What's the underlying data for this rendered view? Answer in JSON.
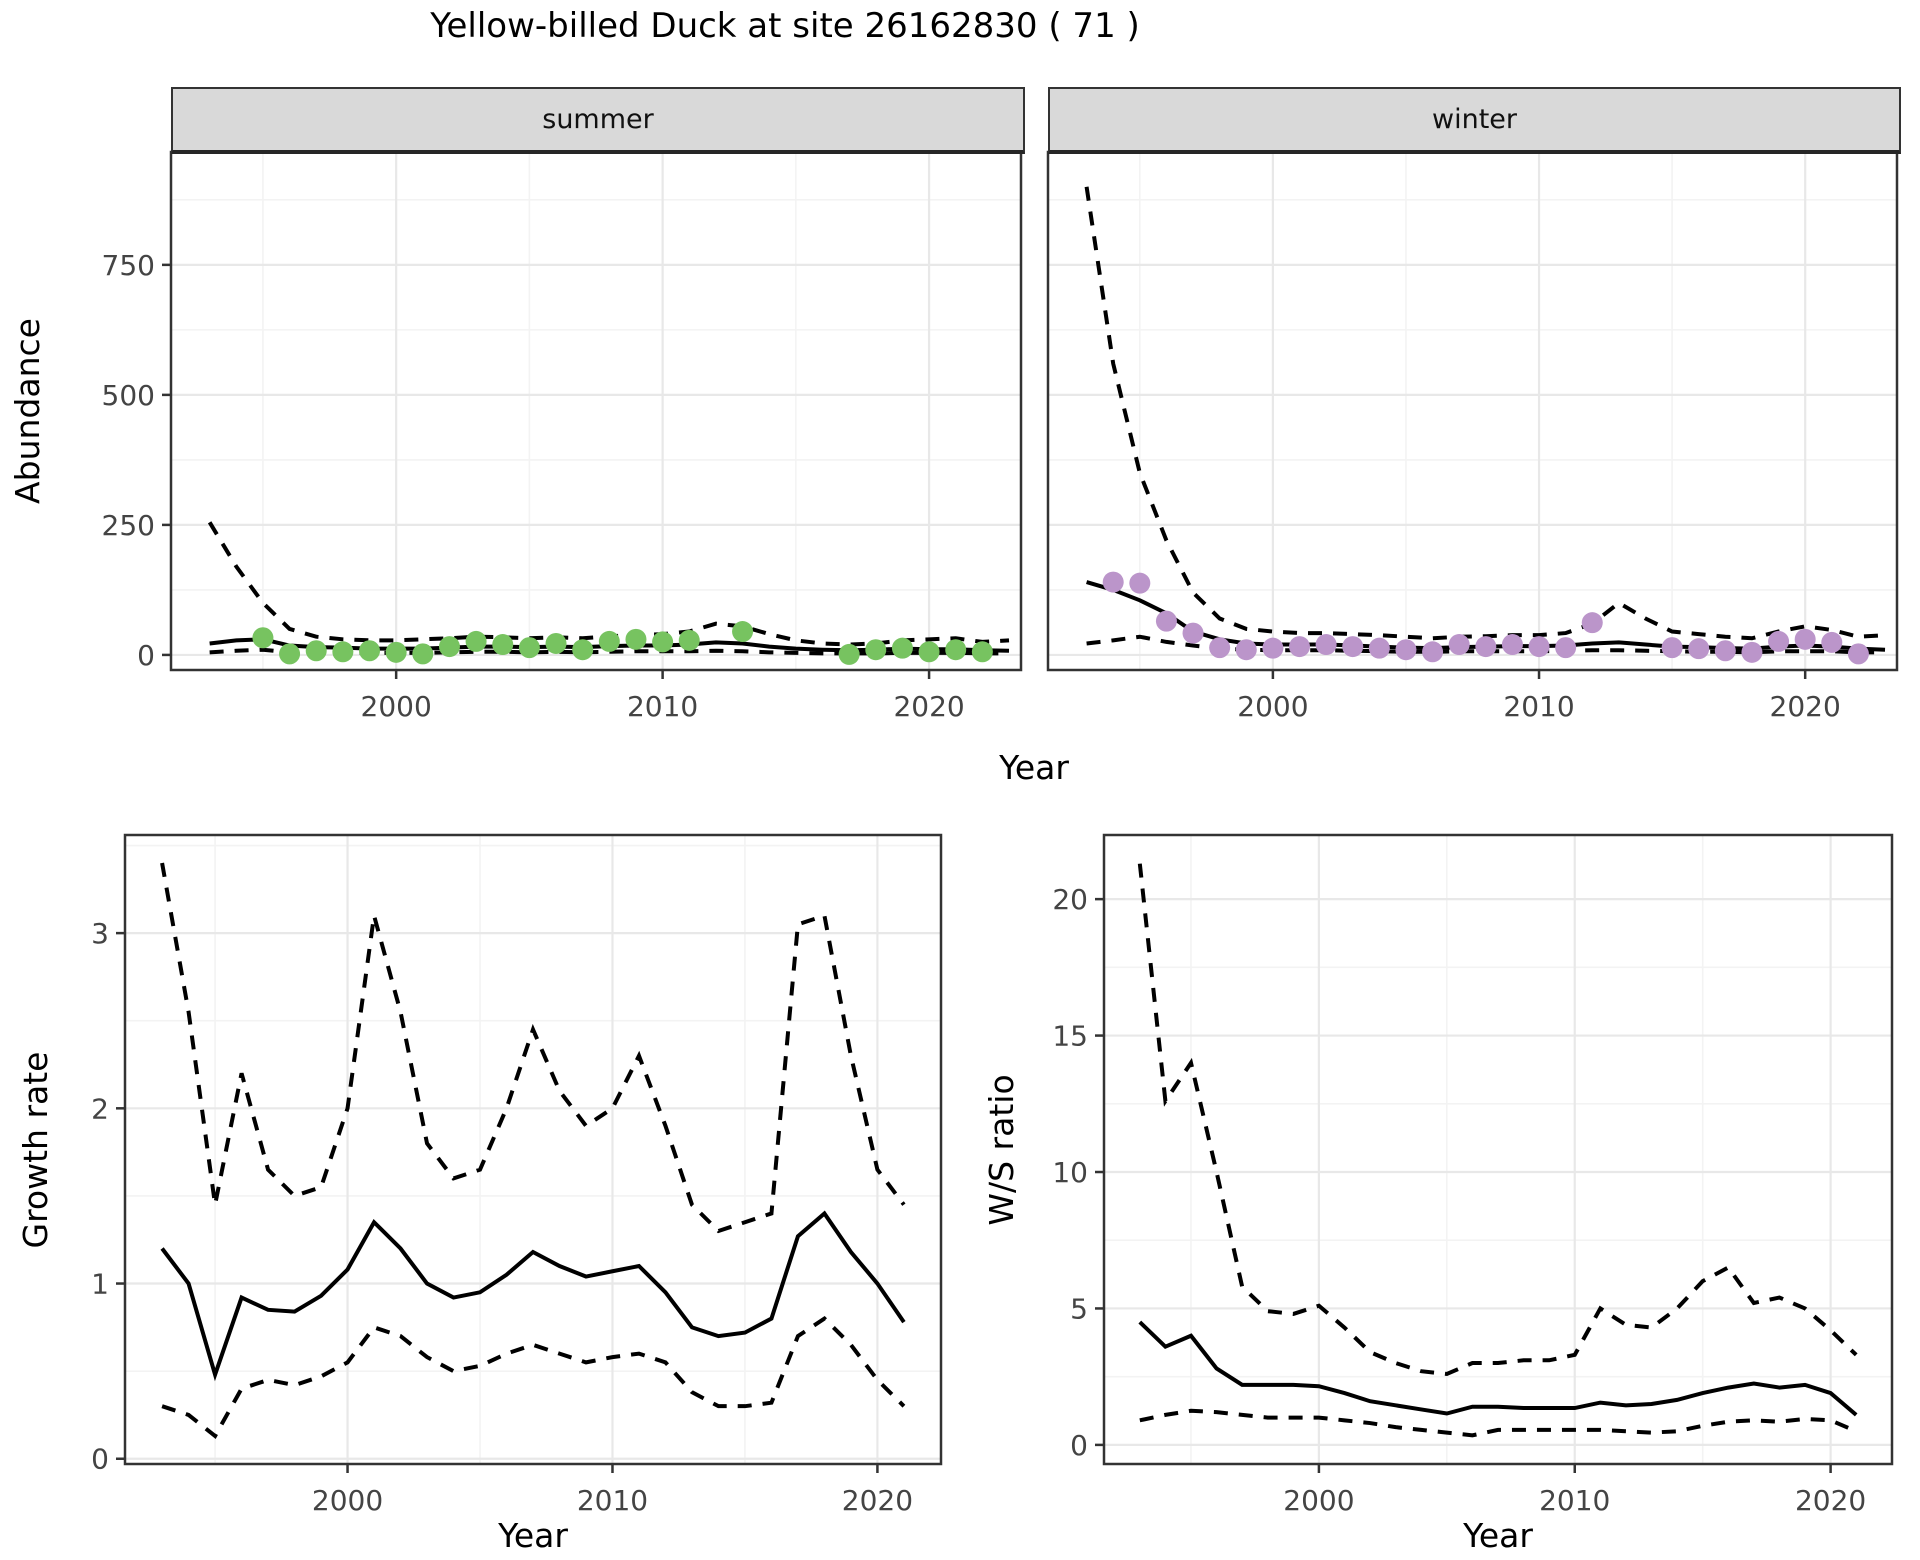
{
  "title": "Yellow-billed Duck at site 26162830 ( 71 )",
  "axes": {
    "abundance_y": "Abundance",
    "top_x": "Year",
    "growth_y": "Growth rate",
    "bottom_left_x": "Year",
    "ws_y": "W/S ratio",
    "bottom_right_x": "Year"
  },
  "facets": [
    {
      "label": "summer"
    },
    {
      "label": "winter"
    }
  ],
  "colors": {
    "summer_points": "#77C360",
    "winter_points": "#BB95CA",
    "line": "#000000",
    "grid_major": "#E8E8E8",
    "grid_minor": "#F3F3F3",
    "strip_bg": "#D9D9D9",
    "panel_border": "#333333",
    "tick_text": "#444444"
  },
  "chart_data": [
    {
      "id": "summer",
      "type": "line",
      "title": "summer",
      "xlabel": "Year",
      "ylabel": "Abundance",
      "xlim": [
        1991.55,
        2023.45
      ],
      "ylim": [
        -29,
        967
      ],
      "xticks": [
        2000,
        2010,
        2020
      ],
      "xticks_minor": [
        1995,
        2005,
        2015
      ],
      "yticks": [
        0,
        250,
        500,
        750
      ],
      "yticks_minor": [
        125,
        375,
        625,
        875
      ],
      "show_y_tick_labels": true,
      "grid": true,
      "x": [
        1993,
        1994,
        1995,
        1996,
        1997,
        1998,
        1999,
        2000,
        2001,
        2002,
        2003,
        2004,
        2005,
        2006,
        2007,
        2008,
        2009,
        2010,
        2011,
        2012,
        2013,
        2014,
        2015,
        2016,
        2017,
        2018,
        2019,
        2020,
        2021,
        2022,
        2023
      ],
      "series": [
        {
          "name": "upper_95ci",
          "style": "dashed",
          "values": [
            255,
            170,
            100,
            50,
            35,
            30,
            28,
            28,
            30,
            32,
            35,
            34,
            32,
            34,
            32,
            36,
            38,
            40,
            45,
            60,
            55,
            40,
            28,
            22,
            20,
            22,
            28,
            30,
            32,
            25,
            28
          ]
        },
        {
          "name": "median_fit",
          "style": "solid",
          "values": [
            22,
            28,
            30,
            18,
            15,
            14,
            12,
            12,
            12,
            14,
            16,
            16,
            15,
            16,
            15,
            17,
            18,
            18,
            20,
            24,
            22,
            16,
            12,
            10,
            9,
            10,
            12,
            11,
            11,
            9,
            8
          ]
        },
        {
          "name": "lower_95ci",
          "style": "dashed",
          "values": [
            5,
            8,
            10,
            5,
            6,
            5,
            4,
            4,
            4,
            5,
            6,
            6,
            5,
            6,
            5,
            6,
            7,
            7,
            7,
            8,
            7,
            5,
            4,
            3,
            3,
            3,
            4,
            4,
            4,
            3,
            3
          ]
        }
      ],
      "points": {
        "name": "observed_summer_counts",
        "color": "#77C360",
        "x": [
          1995,
          1996,
          1997,
          1998,
          1999,
          2000,
          2001,
          2002,
          2003,
          2004,
          2005,
          2006,
          2007,
          2008,
          2009,
          2010,
          2011,
          2013,
          2017,
          2018,
          2019,
          2020,
          2021,
          2022
        ],
        "y": [
          33,
          2,
          8,
          6,
          8,
          5,
          2,
          16,
          26,
          20,
          14,
          22,
          10,
          26,
          30,
          25,
          28,
          45,
          1,
          10,
          13,
          6,
          10,
          6
        ]
      }
    },
    {
      "id": "winter",
      "type": "line",
      "title": "winter",
      "xlabel": "Year",
      "ylabel": "Abundance",
      "xlim": [
        1991.55,
        2023.45
      ],
      "ylim": [
        -29,
        967
      ],
      "xticks": [
        2000,
        2010,
        2020
      ],
      "xticks_minor": [
        1995,
        2005,
        2015
      ],
      "yticks": [
        0,
        250,
        500,
        750
      ],
      "yticks_minor": [
        125,
        375,
        625,
        875
      ],
      "show_y_tick_labels": false,
      "grid": true,
      "x": [
        1993,
        1994,
        1995,
        1996,
        1997,
        1998,
        1999,
        2000,
        2001,
        2002,
        2003,
        2004,
        2005,
        2006,
        2007,
        2008,
        2009,
        2010,
        2011,
        2012,
        2013,
        2014,
        2015,
        2016,
        2017,
        2018,
        2019,
        2020,
        2021,
        2022,
        2023
      ],
      "series": [
        {
          "name": "upper_95ci",
          "style": "dashed",
          "values": [
            900,
            560,
            350,
            220,
            120,
            70,
            50,
            45,
            42,
            42,
            40,
            38,
            35,
            32,
            35,
            36,
            38,
            38,
            42,
            60,
            100,
            70,
            45,
            40,
            35,
            32,
            45,
            55,
            48,
            35,
            38
          ]
        },
        {
          "name": "median_fit",
          "style": "solid",
          "values": [
            140,
            125,
            105,
            80,
            45,
            30,
            22,
            20,
            20,
            20,
            18,
            16,
            14,
            13,
            15,
            16,
            17,
            17,
            18,
            22,
            24,
            20,
            16,
            15,
            13,
            12,
            16,
            18,
            16,
            12,
            10
          ]
        },
        {
          "name": "lower_95ci",
          "style": "dashed",
          "values": [
            22,
            28,
            35,
            25,
            18,
            12,
            10,
            9,
            9,
            9,
            8,
            7,
            6,
            6,
            7,
            7,
            7,
            7,
            8,
            9,
            9,
            8,
            7,
            6,
            6,
            5,
            7,
            7,
            7,
            5,
            5
          ]
        }
      ],
      "points": {
        "name": "observed_winter_counts",
        "color": "#BB95CA",
        "x": [
          1994,
          1995,
          1996,
          1997,
          1998,
          1999,
          2000,
          2001,
          2002,
          2003,
          2004,
          2005,
          2006,
          2007,
          2008,
          2009,
          2010,
          2011,
          2012,
          2015,
          2016,
          2017,
          2018,
          2019,
          2020,
          2021,
          2022
        ],
        "y": [
          140,
          138,
          65,
          42,
          14,
          10,
          13,
          16,
          20,
          16,
          13,
          10,
          6,
          20,
          16,
          20,
          16,
          14,
          62,
          14,
          12,
          8,
          5,
          26,
          30,
          24,
          2
        ]
      }
    },
    {
      "id": "growth",
      "type": "line",
      "title": "",
      "xlabel": "Year",
      "ylabel": "Growth rate",
      "xlim": [
        1991.6,
        2022.4
      ],
      "ylim": [
        -0.03,
        3.56
      ],
      "xticks": [
        2000,
        2010,
        2020
      ],
      "xticks_minor": [
        1995,
        2005,
        2015
      ],
      "yticks": [
        0,
        1,
        2,
        3
      ],
      "yticks_minor": [
        0.5,
        1.5,
        2.5,
        3.5
      ],
      "show_y_tick_labels": true,
      "grid": true,
      "x": [
        1993,
        1994,
        1995,
        1996,
        1997,
        1998,
        1999,
        2000,
        2001,
        2002,
        2003,
        2004,
        2005,
        2006,
        2007,
        2008,
        2009,
        2010,
        2011,
        2012,
        2013,
        2014,
        2015,
        2016,
        2017,
        2018,
        2019,
        2020,
        2021
      ],
      "series": [
        {
          "name": "upper_95ci",
          "style": "dashed",
          "values": [
            3.4,
            2.55,
            1.45,
            2.2,
            1.65,
            1.5,
            1.55,
            2.0,
            3.1,
            2.55,
            1.8,
            1.6,
            1.65,
            2.0,
            2.45,
            2.1,
            1.9,
            2.0,
            2.3,
            1.9,
            1.45,
            1.3,
            1.35,
            1.4,
            3.05,
            3.1,
            2.3,
            1.65,
            1.45
          ]
        },
        {
          "name": "median_fit",
          "style": "solid",
          "values": [
            1.2,
            1.0,
            0.48,
            0.92,
            0.85,
            0.84,
            0.93,
            1.08,
            1.35,
            1.2,
            1.0,
            0.92,
            0.95,
            1.05,
            1.18,
            1.1,
            1.04,
            1.07,
            1.1,
            0.95,
            0.75,
            0.7,
            0.72,
            0.8,
            1.27,
            1.4,
            1.18,
            1.0,
            0.78
          ]
        },
        {
          "name": "lower_95ci",
          "style": "dashed",
          "values": [
            0.3,
            0.25,
            0.13,
            0.4,
            0.45,
            0.42,
            0.47,
            0.55,
            0.75,
            0.7,
            0.58,
            0.5,
            0.53,
            0.6,
            0.65,
            0.6,
            0.55,
            0.58,
            0.6,
            0.55,
            0.38,
            0.3,
            0.3,
            0.32,
            0.7,
            0.8,
            0.65,
            0.45,
            0.3
          ]
        }
      ]
    },
    {
      "id": "ws",
      "type": "line",
      "title": "",
      "xlabel": "Year",
      "ylabel": "W/S ratio",
      "xlim": [
        1991.6,
        2022.4
      ],
      "ylim": [
        -0.7,
        22.35
      ],
      "xticks": [
        2000,
        2010,
        2020
      ],
      "xticks_minor": [
        1995,
        2005,
        2015
      ],
      "yticks": [
        0,
        5,
        10,
        15,
        20
      ],
      "yticks_minor": [
        2.5,
        7.5,
        12.5,
        17.5
      ],
      "show_y_tick_labels": true,
      "grid": true,
      "x": [
        1993,
        1994,
        1995,
        1996,
        1997,
        1998,
        1999,
        2000,
        2001,
        2002,
        2003,
        2004,
        2005,
        2006,
        2007,
        2008,
        2009,
        2010,
        2011,
        2012,
        2013,
        2014,
        2015,
        2016,
        2017,
        2018,
        2019,
        2020,
        2021
      ],
      "series": [
        {
          "name": "upper_95ci",
          "style": "dashed",
          "values": [
            21.3,
            12.6,
            14.0,
            10.0,
            5.8,
            4.9,
            4.8,
            5.1,
            4.3,
            3.4,
            3.0,
            2.7,
            2.6,
            3.0,
            3.0,
            3.1,
            3.1,
            3.3,
            5.0,
            4.4,
            4.3,
            5.0,
            6.0,
            6.5,
            5.2,
            5.4,
            5.0,
            4.2,
            3.3
          ]
        },
        {
          "name": "median_fit",
          "style": "solid",
          "values": [
            4.5,
            3.6,
            4.0,
            2.8,
            2.2,
            2.2,
            2.2,
            2.15,
            1.9,
            1.6,
            1.45,
            1.3,
            1.15,
            1.4,
            1.4,
            1.35,
            1.35,
            1.35,
            1.55,
            1.45,
            1.5,
            1.65,
            1.9,
            2.1,
            2.25,
            2.1,
            2.2,
            1.9,
            1.1
          ]
        },
        {
          "name": "lower_95ci",
          "style": "dashed",
          "values": [
            0.9,
            1.1,
            1.25,
            1.2,
            1.1,
            1.0,
            1.0,
            1.0,
            0.9,
            0.8,
            0.65,
            0.55,
            0.45,
            0.35,
            0.55,
            0.55,
            0.55,
            0.55,
            0.55,
            0.5,
            0.45,
            0.5,
            0.7,
            0.85,
            0.9,
            0.85,
            0.95,
            0.9,
            0.5
          ]
        }
      ]
    }
  ]
}
